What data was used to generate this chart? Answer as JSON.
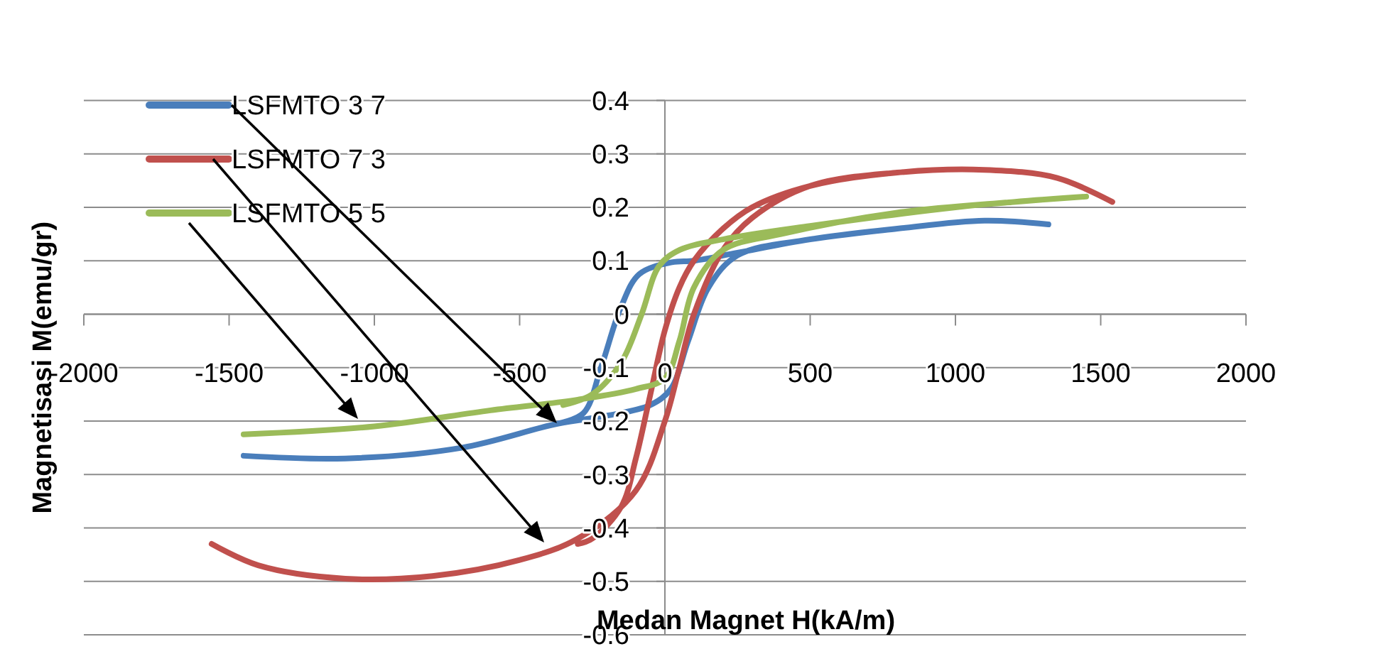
{
  "chart_data": {
    "type": "line",
    "xlabel": "Medan Magnet H(kA/m)",
    "ylabel": "Magnetisasi M(emu/gr)",
    "xlim": [
      -2000,
      2000
    ],
    "xticks": [
      -2000,
      -1500,
      -1000,
      -500,
      0,
      500,
      1000,
      1500,
      2000
    ],
    "ylim": [
      -0.6,
      0.4
    ],
    "yticks": [
      -0.6,
      -0.5,
      -0.4,
      -0.3,
      -0.2,
      -0.1,
      0,
      0.1,
      0.2,
      0.3,
      0.4
    ],
    "grid": "y",
    "legend": "top left",
    "marker": "none",
    "line_style": "solid",
    "series": [
      {
        "name": "LSFMTO 3 7",
        "color": "#4a7ebb",
        "x": [
          -1450,
          -1100,
          -700,
          -370,
          -200,
          -50,
          20,
          80,
          150,
          250,
          500,
          800,
          1100,
          1320,
          1100,
          800,
          500,
          250,
          100,
          24,
          -88,
          -152,
          -220,
          -280,
          -370
        ],
        "values": [
          -0.265,
          -0.27,
          -0.25,
          -0.205,
          -0.19,
          -0.17,
          -0.14,
          -0.05,
          0.05,
          0.11,
          0.14,
          0.16,
          0.175,
          0.168,
          0.175,
          0.16,
          0.14,
          0.115,
          0.1,
          0.097,
          0.075,
          0.012,
          -0.1,
          -0.185,
          -0.205
        ]
      },
      {
        "name": "LSFMTO 7 3",
        "color": "#c0504d",
        "x": [
          -1560,
          -1400,
          -1100,
          -800,
          -500,
          -300,
          -100,
          0,
          50,
          100,
          200,
          300,
          500,
          800,
          1100,
          1350,
          1540,
          1350,
          1100,
          800,
          500,
          300,
          200,
          100,
          50,
          0,
          -50,
          -100,
          -150,
          -250,
          -300
        ],
        "values": [
          -0.43,
          -0.47,
          -0.495,
          -0.49,
          -0.46,
          -0.42,
          -0.33,
          -0.2,
          -0.1,
          0.0,
          0.12,
          0.18,
          0.24,
          0.265,
          0.27,
          0.255,
          0.21,
          0.255,
          0.27,
          0.265,
          0.24,
          0.2,
          0.16,
          0.1,
          0.05,
          -0.03,
          -0.15,
          -0.27,
          -0.36,
          -0.42,
          -0.43
        ]
      },
      {
        "name": "LSFMTO 5 5",
        "color": "#9bbb59",
        "x": [
          -1450,
          -1000,
          -600,
          -300,
          -100,
          0,
          50,
          100,
          200,
          400,
          800,
          1200,
          1450,
          1200,
          1000,
          500,
          200,
          50,
          -20,
          -80,
          -150,
          -250,
          -350
        ],
        "values": [
          -0.225,
          -0.21,
          -0.18,
          -0.16,
          -0.14,
          -0.12,
          -0.05,
          0.05,
          0.12,
          0.15,
          0.19,
          0.21,
          0.22,
          0.21,
          0.2,
          0.165,
          0.14,
          0.12,
          0.09,
          0.0,
          -0.09,
          -0.15,
          -0.17
        ]
      }
    ]
  }
}
